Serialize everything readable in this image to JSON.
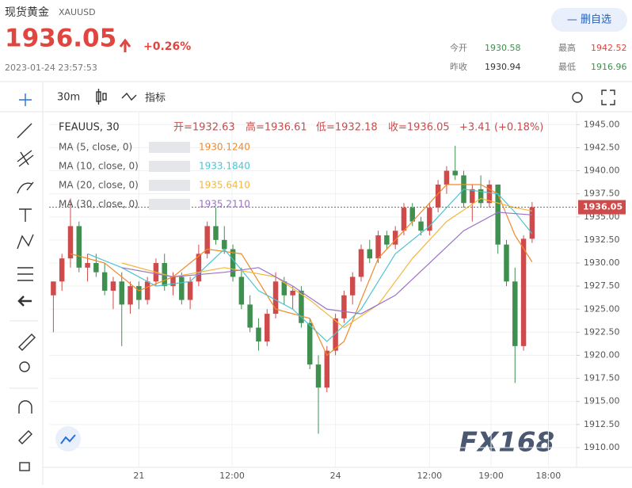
{
  "quote": {
    "name": "现货黄金",
    "symbol": "XAUUSD",
    "price": 1936.05,
    "change": "+0.26%",
    "time": "2023-01-24 23:57:53",
    "button": "— 删自选",
    "stats": [
      {
        "label": "今开",
        "value": 1930.58
      },
      {
        "label": "最高",
        "value": 1942.52
      },
      {
        "label": "昨收",
        "value": 1930.94
      },
      {
        "label": "最低",
        "value": 1916.96
      }
    ]
  },
  "toolbar": {
    "interval": "30m",
    "indicators": "指标"
  },
  "watermark": "FX168",
  "chart_data": {
    "type": "candlestick",
    "title": "FEAUUS, 30",
    "ohlc_text": [
      "开=1932.63",
      "高=1936.61",
      "低=1932.18",
      "收=1936.05",
      "+3.41 (+0.18%)"
    ],
    "up_color": "#cf4b4b",
    "down_color": "#3f8f4f",
    "ohlc": [
      [
        1926.5,
        1928,
        1922.5,
        1928
      ],
      [
        1928,
        1931,
        1927,
        1930.5
      ],
      [
        1930.5,
        1937,
        1929.5,
        1934
      ],
      [
        1934,
        1934.5,
        1929,
        1929.5
      ],
      [
        1929.5,
        1931,
        1928,
        1930
      ],
      [
        1930,
        1931,
        1928.5,
        1929
      ],
      [
        1929,
        1930,
        1926.5,
        1927
      ],
      [
        1927,
        1928.5,
        1925,
        1928
      ],
      [
        1928,
        1929,
        1921,
        1925.5
      ],
      [
        1925.5,
        1928,
        1924.5,
        1927.5
      ],
      [
        1927.5,
        1928,
        1925,
        1926
      ],
      [
        1926,
        1928.5,
        1925.5,
        1928
      ],
      [
        1928,
        1930.5,
        1927.5,
        1930
      ],
      [
        1930,
        1931,
        1927,
        1927.5
      ],
      [
        1927.5,
        1929,
        1926.5,
        1928.5
      ],
      [
        1928.5,
        1929,
        1925.5,
        1926
      ],
      [
        1926,
        1928.5,
        1925,
        1928
      ],
      [
        1928,
        1932,
        1927.5,
        1931
      ],
      [
        1931,
        1934.5,
        1930.5,
        1934
      ],
      [
        1934,
        1936,
        1932,
        1932.5
      ],
      [
        1932.5,
        1934,
        1931,
        1931.5
      ],
      [
        1931.5,
        1932,
        1928,
        1928.5
      ],
      [
        1928.5,
        1929.5,
        1925,
        1925.5
      ],
      [
        1925.5,
        1926.5,
        1922.5,
        1923
      ],
      [
        1923,
        1924,
        1920.5,
        1921.5
      ],
      [
        1921.5,
        1925,
        1921,
        1924.5
      ],
      [
        1924.5,
        1929,
        1924,
        1928
      ],
      [
        1928,
        1928.5,
        1925.5,
        1926.5
      ],
      [
        1926.5,
        1927.5,
        1925,
        1927
      ],
      [
        1927,
        1927.5,
        1923,
        1923.5
      ],
      [
        1923.5,
        1924,
        1918.5,
        1919
      ],
      [
        1919,
        1920,
        1911.5,
        1916.5
      ],
      [
        1916.5,
        1921,
        1916,
        1920.5
      ],
      [
        1920.5,
        1924.5,
        1920,
        1924
      ],
      [
        1924,
        1927,
        1923.5,
        1926.5
      ],
      [
        1926.5,
        1929,
        1925.5,
        1928.5
      ],
      [
        1928.5,
        1932,
        1928,
        1931.5
      ],
      [
        1931.5,
        1932.5,
        1930,
        1930.5
      ],
      [
        1930.5,
        1933.5,
        1930,
        1933
      ],
      [
        1933,
        1933.5,
        1931.5,
        1932
      ],
      [
        1932,
        1934,
        1931.5,
        1933.5
      ],
      [
        1933.5,
        1936.5,
        1933,
        1936
      ],
      [
        1936,
        1936.5,
        1934,
        1934.5
      ],
      [
        1934.5,
        1935,
        1933,
        1933.5
      ],
      [
        1933.5,
        1936.5,
        1933,
        1936
      ],
      [
        1936,
        1939,
        1935.5,
        1938.5
      ],
      [
        1938.5,
        1940.5,
        1937.5,
        1940
      ],
      [
        1940,
        1942.7,
        1939,
        1939.5
      ],
      [
        1939.5,
        1940,
        1936,
        1936.5
      ],
      [
        1936.5,
        1938.5,
        1934.5,
        1938
      ],
      [
        1938,
        1939.5,
        1936,
        1936.5
      ],
      [
        1936.5,
        1939,
        1936,
        1938.5
      ],
      [
        1938.5,
        1938.5,
        1931,
        1932
      ],
      [
        1932,
        1932.5,
        1927.5,
        1928
      ],
      [
        1928,
        1929.5,
        1917,
        1921
      ],
      [
        1921,
        1933,
        1920.5,
        1932.63
      ],
      [
        1932.63,
        1936.61,
        1932.18,
        1936.05
      ]
    ],
    "series": [
      {
        "name": "MA (5, close, 0)",
        "legend_value": "1930.1240",
        "color": "#f0892b",
        "x": [
          2,
          6,
          10,
          14,
          18,
          22,
          26,
          30,
          32,
          34,
          38,
          42,
          46,
          50,
          52,
          54,
          56
        ],
        "values": [
          1931,
          1930,
          1927,
          1928.5,
          1931.5,
          1931,
          1925,
          1924,
          1920,
          1921.5,
          1930.5,
          1934.5,
          1938.5,
          1938.5,
          1937.5,
          1933,
          1930.12
        ]
      },
      {
        "name": "MA (10, close, 0)",
        "legend_value": "1933.1840",
        "color": "#4cc3d3",
        "x": [
          4,
          8,
          12,
          16,
          20,
          24,
          28,
          32,
          36,
          40,
          44,
          48,
          52,
          54,
          56
        ],
        "values": [
          1931,
          1929.5,
          1927.5,
          1928,
          1931.5,
          1927,
          1925,
          1921.5,
          1925,
          1931,
          1934,
          1938,
          1937.5,
          1935.5,
          1933.18
        ]
      },
      {
        "name": "MA (20, close, 0)",
        "legend_value": "1935.6410",
        "color": "#f2b83c",
        "x": [
          8,
          14,
          20,
          26,
          30,
          34,
          38,
          42,
          46,
          50,
          54,
          56
        ],
        "values": [
          1930,
          1928.5,
          1929.5,
          1928.5,
          1926,
          1923,
          1925.5,
          1930.5,
          1934.5,
          1937,
          1936,
          1935.64
        ]
      },
      {
        "name": "MA (30, close, 0)",
        "legend_value": "1935.2110",
        "color": "#9a72c8",
        "x": [
          8,
          14,
          20,
          24,
          28,
          32,
          36,
          40,
          44,
          48,
          52,
          56
        ],
        "values": [
          1929.5,
          1928.5,
          1929,
          1929.5,
          1927.5,
          1925,
          1924.5,
          1926.5,
          1930,
          1933.5,
          1935.5,
          1935.21
        ]
      }
    ],
    "last_price": {
      "value": 1936.05,
      "label": "1936.05"
    },
    "xlim": [
      -0.5,
      61.2
    ],
    "ylim": [
      1907.85,
      1946.4
    ],
    "xticks": [
      {
        "value": 10,
        "label": "21"
      },
      {
        "value": 20.9,
        "label": "12:00"
      },
      {
        "value": 33,
        "label": "24"
      },
      {
        "value": 44,
        "label": "12:00"
      },
      {
        "value": 51.2,
        "label": "19:00"
      },
      {
        "value": 57.9,
        "label": "18:00"
      }
    ],
    "yticks": [
      {
        "value": 1910,
        "label": "1910.00"
      },
      {
        "value": 1912.5,
        "label": "1912.50"
      },
      {
        "value": 1915,
        "label": "1915.00"
      },
      {
        "value": 1917.5,
        "label": "1917.50"
      },
      {
        "value": 1920,
        "label": "1920.00"
      },
      {
        "value": 1922.5,
        "label": "1922.50"
      },
      {
        "value": 1925,
        "label": "1925.00"
      },
      {
        "value": 1927.5,
        "label": "1927.50"
      },
      {
        "value": 1930,
        "label": "1930.00"
      },
      {
        "value": 1932.5,
        "label": "1932.50"
      },
      {
        "value": 1935,
        "label": "1935.00"
      },
      {
        "value": 1937.5,
        "label": "1937.50"
      },
      {
        "value": 1940,
        "label": "1940.00"
      },
      {
        "value": 1942.5,
        "label": "1942.50"
      },
      {
        "value": 1945,
        "label": "1945.00"
      }
    ],
    "grid": true
  }
}
